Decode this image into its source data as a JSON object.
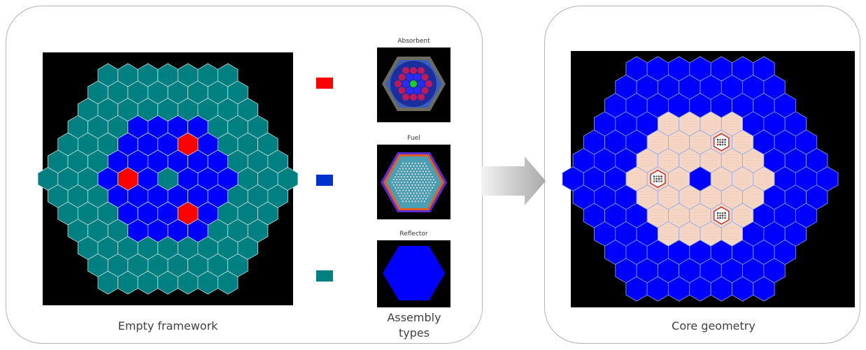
{
  "captions": {
    "empty_framework": "Empty framework",
    "assembly_types": "Assembly types",
    "core_geometry": "Core geometry"
  },
  "assemblies": {
    "absorbent": "Absorbent",
    "fuel": "Fuel",
    "reflector": "Reflector"
  },
  "colors": {
    "absorbent": "#ff0000",
    "fuel": "#0000ff",
    "reflector": "#008080",
    "core_reflector": "#0000ff",
    "core_fuel": "#f5d5c4",
    "grid_line": "#c8dede"
  }
}
